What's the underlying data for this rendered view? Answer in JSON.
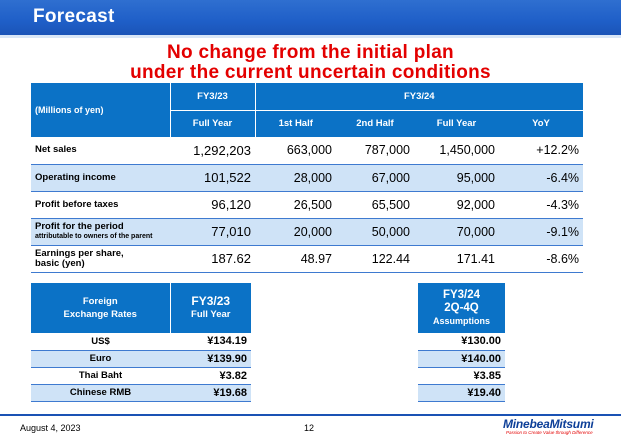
{
  "title": "Forecast",
  "headline": {
    "line1": "No change from the initial plan",
    "line2": "under the current uncertain conditions"
  },
  "table": {
    "unit_label": "(Millions of yen)",
    "fy23_label": "FY3/23",
    "fy23_sub": "Full Year",
    "fy24_label": "FY3/24",
    "fy24_cols": [
      "1st Half",
      "2nd Half",
      "Full Year",
      "YoY"
    ],
    "rows": [
      {
        "name": "Net sales",
        "fy23": "1,292,203",
        "h1": "663,000",
        "h2": "787,000",
        "full": "1,450,000",
        "yoy": "+12.2%"
      },
      {
        "name": "Operating income",
        "fy23": "101,522",
        "h1": "28,000",
        "h2": "67,000",
        "full": "95,000",
        "yoy": "-6.4%"
      },
      {
        "name": "Profit before taxes",
        "fy23": "96,120",
        "h1": "26,500",
        "h2": "65,500",
        "full": "92,000",
        "yoy": "-4.3%"
      },
      {
        "name": "Profit for the period",
        "sub": "attributable to owners of the parent",
        "fy23": "77,010",
        "h1": "20,000",
        "h2": "50,000",
        "full": "70,000",
        "yoy": "-9.1%"
      },
      {
        "name": "Earnings per share,",
        "name2": "basic (yen)",
        "fy23": "187.62",
        "h1": "48.97",
        "h2": "122.44",
        "full": "171.41",
        "yoy": "-8.6%"
      }
    ]
  },
  "fx": {
    "header_label_1": "Foreign",
    "header_label_2": "Exchange Rates",
    "fy23_label": "FY3/23",
    "fy23_sub": "Full Year",
    "fy24_label": "FY3/24",
    "fy24_sub1": "2Q-4Q",
    "fy24_sub2": "Assumptions",
    "rows": [
      {
        "name": "US$",
        "fy23": "¥134.19",
        "fy24": "¥130.00"
      },
      {
        "name": "Euro",
        "fy23": "¥139.90",
        "fy24": "¥140.00"
      },
      {
        "name": "Thai Baht",
        "fy23": "¥3.82",
        "fy24": "¥3.85"
      },
      {
        "name": "Chinese RMB",
        "fy23": "¥19.68",
        "fy24": "¥19.40"
      }
    ]
  },
  "footer": {
    "date": "August 4, 2023",
    "page": "12",
    "brand": "MinebeaMitsumi",
    "tagline": "Passion to Create Value through Difference"
  },
  "colors": {
    "title_blue": "#1f5fc8",
    "header_blue": "#0b72c6",
    "shade": "#cfe3f7",
    "headline_red": "#e30000"
  }
}
